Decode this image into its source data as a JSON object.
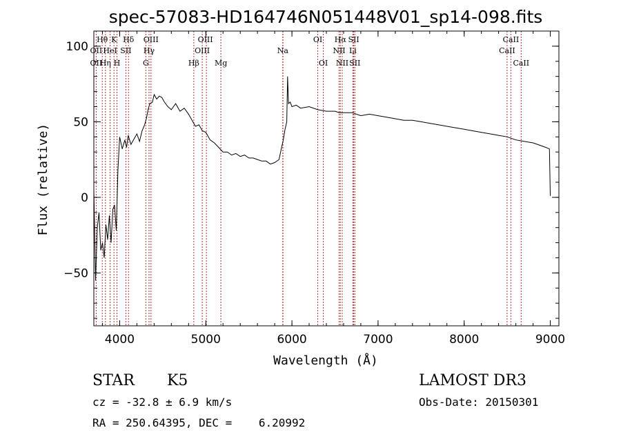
{
  "chart_data": {
    "type": "line",
    "title": "spec-57083-HD164746N051448V01_sp14-098.fits",
    "xlabel": "Wavelength (Å)",
    "ylabel": "Flux (relative)",
    "xlim": [
      3700,
      9100
    ],
    "ylim": [
      -85,
      110
    ],
    "grid": false,
    "x_ticks": [
      4000,
      5000,
      6000,
      7000,
      8000,
      9000
    ],
    "y_ticks": [
      -50,
      0,
      50,
      100
    ],
    "series": [
      {
        "color": "#000000",
        "points": [
          [
            3700,
            5
          ],
          [
            3720,
            -55
          ],
          [
            3740,
            -20
          ],
          [
            3760,
            -10
          ],
          [
            3780,
            -35
          ],
          [
            3800,
            -30
          ],
          [
            3820,
            -40
          ],
          [
            3840,
            -18
          ],
          [
            3860,
            -28
          ],
          [
            3880,
            -12
          ],
          [
            3900,
            -30
          ],
          [
            3920,
            -8
          ],
          [
            3940,
            -5
          ],
          [
            3960,
            -22
          ],
          [
            3980,
            18
          ],
          [
            4000,
            40
          ],
          [
            4030,
            32
          ],
          [
            4060,
            38
          ],
          [
            4080,
            33
          ],
          [
            4100,
            41
          ],
          [
            4130,
            35
          ],
          [
            4160,
            38
          ],
          [
            4200,
            42
          ],
          [
            4230,
            37
          ],
          [
            4260,
            44
          ],
          [
            4290,
            48
          ],
          [
            4310,
            52
          ],
          [
            4330,
            58
          ],
          [
            4350,
            62
          ],
          [
            4380,
            63
          ],
          [
            4400,
            68
          ],
          [
            4430,
            65
          ],
          [
            4460,
            67
          ],
          [
            4490,
            66
          ],
          [
            4520,
            63
          ],
          [
            4560,
            60
          ],
          [
            4600,
            58
          ],
          [
            4650,
            62
          ],
          [
            4700,
            57
          ],
          [
            4750,
            59
          ],
          [
            4800,
            55
          ],
          [
            4850,
            50
          ],
          [
            4880,
            47
          ],
          [
            4920,
            48
          ],
          [
            4960,
            44
          ],
          [
            5000,
            43
          ],
          [
            5050,
            38
          ],
          [
            5100,
            36
          ],
          [
            5150,
            33
          ],
          [
            5200,
            30
          ],
          [
            5250,
            30
          ],
          [
            5300,
            28
          ],
          [
            5350,
            29
          ],
          [
            5400,
            27
          ],
          [
            5450,
            28
          ],
          [
            5500,
            26
          ],
          [
            5550,
            26
          ],
          [
            5600,
            25
          ],
          [
            5650,
            24
          ],
          [
            5700,
            24
          ],
          [
            5750,
            22
          ],
          [
            5800,
            23
          ],
          [
            5850,
            25
          ],
          [
            5880,
            33
          ],
          [
            5900,
            38
          ],
          [
            5920,
            45
          ],
          [
            5940,
            50
          ],
          [
            5950,
            80
          ],
          [
            5960,
            62
          ],
          [
            5980,
            63
          ],
          [
            6000,
            60
          ],
          [
            6050,
            61
          ],
          [
            6100,
            59
          ],
          [
            6200,
            60
          ],
          [
            6300,
            58
          ],
          [
            6400,
            57
          ],
          [
            6500,
            57
          ],
          [
            6550,
            56
          ],
          [
            6600,
            56
          ],
          [
            6700,
            56
          ],
          [
            6800,
            54
          ],
          [
            6900,
            55
          ],
          [
            7000,
            54
          ],
          [
            7100,
            53
          ],
          [
            7200,
            52
          ],
          [
            7300,
            51
          ],
          [
            7400,
            51
          ],
          [
            7500,
            50
          ],
          [
            7600,
            49
          ],
          [
            7700,
            48
          ],
          [
            7800,
            47
          ],
          [
            7900,
            46
          ],
          [
            8000,
            45
          ],
          [
            8100,
            44
          ],
          [
            8200,
            43
          ],
          [
            8300,
            42
          ],
          [
            8400,
            41
          ],
          [
            8500,
            40
          ],
          [
            8600,
            38
          ],
          [
            8700,
            37
          ],
          [
            8800,
            36
          ],
          [
            8900,
            34
          ],
          [
            8950,
            33
          ],
          [
            8990,
            32
          ],
          [
            9000,
            1
          ]
        ]
      }
    ],
    "line_labels": [
      {
        "name": "Hθ",
        "x": 3798,
        "row": 1
      },
      {
        "name": "K",
        "x": 3934,
        "row": 1
      },
      {
        "name": "Hδ",
        "x": 4102,
        "row": 1
      },
      {
        "name": "OII",
        "x": 3727,
        "row": 2
      },
      {
        "name": "HeI",
        "x": 3889,
        "row": 2
      },
      {
        "name": "SII",
        "x": 4072,
        "row": 2
      },
      {
        "name": "OII",
        "x": 3727,
        "row": 3
      },
      {
        "name": "Hη",
        "x": 3835,
        "row": 3
      },
      {
        "name": "H",
        "x": 3969,
        "row": 3
      },
      {
        "name": "OIII",
        "x": 4363,
        "row": 1
      },
      {
        "name": "Hγ",
        "x": 4341,
        "row": 2
      },
      {
        "name": "G",
        "x": 4304,
        "row": 3
      },
      {
        "name": "OIII",
        "x": 4995,
        "row": 1
      },
      {
        "name": "OIII",
        "x": 4959,
        "row": 2
      },
      {
        "name": "Hβ",
        "x": 4861,
        "row": 3
      },
      {
        "name": "Mg",
        "x": 5175,
        "row": 3
      },
      {
        "name": "Na",
        "x": 5894,
        "row": 2
      },
      {
        "name": "OI",
        "x": 6300,
        "row": 1
      },
      {
        "name": "OI",
        "x": 6364,
        "row": 3
      },
      {
        "name": "Hα",
        "x": 6563,
        "row": 1
      },
      {
        "name": "SII",
        "x": 6717,
        "row": 1
      },
      {
        "name": "NII",
        "x": 6548,
        "row": 2
      },
      {
        "name": "Li",
        "x": 6708,
        "row": 2
      },
      {
        "name": "NII",
        "x": 6584,
        "row": 3
      },
      {
        "name": "SII",
        "x": 6731,
        "row": 3
      },
      {
        "name": "CaII",
        "x": 8542,
        "row": 1
      },
      {
        "name": "CaII",
        "x": 8498,
        "row": 2
      },
      {
        "name": "CaII",
        "x": 8662,
        "row": 3
      }
    ],
    "line_markers": [
      3727,
      3798,
      3835,
      3889,
      3934,
      3969,
      4072,
      4102,
      4304,
      4341,
      4363,
      4861,
      4959,
      5007,
      5175,
      5894,
      5896,
      6300,
      6364,
      6548,
      6563,
      6584,
      6708,
      6717,
      6731,
      8498,
      8542,
      8662
    ]
  },
  "info": {
    "object_class": "STAR",
    "subclass": "K5",
    "survey": "LAMOST DR3",
    "redshift": "cz = -32.8 ± 6.9 km/s",
    "obs_date": "Obs-Date: 20150301",
    "coords": "RA = 250.64395, DEC =    6.20992"
  },
  "colors": {
    "marker_line": "#b03030",
    "spectrum": "#000000"
  }
}
